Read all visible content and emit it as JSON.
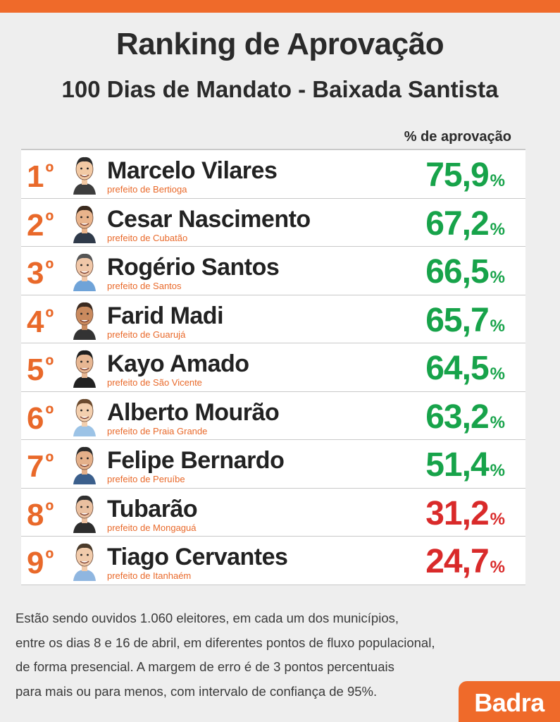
{
  "header": {
    "title": "Ranking de Aprovação",
    "subtitle": "100 Dias de Mandato - Baixada Santista",
    "column_label": "% de aprovação"
  },
  "colors": {
    "accent": "#ef6a2a",
    "approve_high": "#17a34a",
    "approve_low": "#d92a2a"
  },
  "rows": [
    {
      "rank": "1",
      "ord": "º",
      "name": "Marcelo Vilares",
      "role": "prefeito de Bertioga",
      "value": "75,9",
      "unit": "%",
      "status": "green"
    },
    {
      "rank": "2",
      "ord": "º",
      "name": "Cesar Nascimento",
      "role": "prefeito de Cubatão",
      "value": "67,2",
      "unit": "%",
      "status": "green"
    },
    {
      "rank": "3",
      "ord": "º",
      "name": "Rogério Santos",
      "role": "prefeito de Santos",
      "value": "66,5",
      "unit": "%",
      "status": "green"
    },
    {
      "rank": "4",
      "ord": "º",
      "name": "Farid Madi",
      "role": "prefeito de Guarujá",
      "value": "65,7",
      "unit": "%",
      "status": "green"
    },
    {
      "rank": "5",
      "ord": "º",
      "name": "Kayo Amado",
      "role": "prefeito de São Vicente",
      "value": "64,5",
      "unit": "%",
      "status": "green"
    },
    {
      "rank": "6",
      "ord": "º",
      "name": "Alberto Mourão",
      "role": "prefeito de Praia Grande",
      "value": "63,2",
      "unit": "%",
      "status": "green"
    },
    {
      "rank": "7",
      "ord": "º",
      "name": "Felipe Bernardo",
      "role": "prefeito de Peruíbe",
      "value": "51,4",
      "unit": "%",
      "status": "green"
    },
    {
      "rank": "8",
      "ord": "º",
      "name": "Tubarão",
      "role": "prefeito de Mongaguá",
      "value": "31,2",
      "unit": "%",
      "status": "red"
    },
    {
      "rank": "9",
      "ord": "º",
      "name": "Tiago Cervantes",
      "role": "prefeito de Itanhaém",
      "value": "24,7",
      "unit": "%",
      "status": "red"
    }
  ],
  "note": {
    "lines": [
      "Estão sendo ouvidos 1.060 eleitores, em cada um dos municípios,",
      "entre os dias 8 e 16 de abril, em diferentes pontos de fluxo populacional,",
      "de forma presencial. A margem de erro é de 3 pontos percentuais",
      "para mais ou para menos, com intervalo de confiança de 95%."
    ]
  },
  "logo": {
    "text": "Badra"
  }
}
